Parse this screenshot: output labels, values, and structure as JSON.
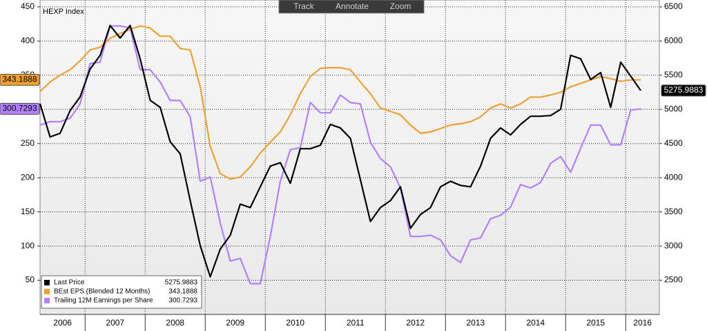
{
  "toolbar": [
    "Track",
    "Annotate",
    "Zoom"
  ],
  "chart_data": {
    "type": "line",
    "title": "HEXP Index",
    "categories": [
      null,
      "2006",
      null,
      null,
      null,
      null,
      null,
      "2007",
      null,
      null,
      null,
      null,
      null,
      "2008",
      null,
      null,
      null,
      null,
      null,
      "2009",
      null,
      null,
      null,
      null,
      null,
      "2010",
      null,
      null,
      null,
      null,
      null,
      "2011",
      null,
      null,
      null,
      null,
      null,
      "2012",
      null,
      null,
      null,
      null,
      null,
      "2013",
      null,
      null,
      null,
      null,
      null,
      "2014",
      null,
      null,
      null,
      null,
      null,
      "2015",
      null,
      null,
      null,
      null,
      "2016"
    ],
    "series": [
      {
        "name": "Last Price",
        "color": "#000000",
        "axis": "y2",
        "values": [
          5082,
          4596,
          4650,
          4980,
          5183,
          5590,
          5790,
          6227,
          6044,
          6227,
          5740,
          5133,
          5030,
          4525,
          4350,
          3665,
          3006,
          2550,
          2955,
          3158,
          3614,
          3563,
          3867,
          4170,
          4220,
          3918,
          4424,
          4424,
          4475,
          4780,
          4728,
          4576,
          3968,
          3360,
          3563,
          3665,
          3867,
          3260,
          3462,
          3563,
          3867,
          3948,
          3888,
          3867,
          4170,
          4576,
          4728,
          4627,
          4780,
          4900,
          4900,
          4910,
          5001,
          5791,
          5740,
          5437,
          5538,
          5030,
          5690,
          5487,
          5275.9883
        ]
      },
      {
        "name": "BEst EPS (Blended 12 Months)",
        "color": "#f0a030",
        "values": [
          326,
          340,
          350,
          358,
          371,
          387,
          391,
          404,
          411,
          417,
          422,
          419,
          407,
          407,
          389,
          387,
          333,
          246,
          206,
          198,
          201,
          216,
          236,
          252,
          267,
          292,
          323,
          348,
          360,
          361,
          361,
          358,
          340,
          323,
          302,
          297,
          292,
          277,
          265,
          267,
          272,
          277,
          279,
          282,
          289,
          302,
          308,
          302,
          308,
          318,
          318,
          321,
          325,
          333,
          338,
          343,
          348,
          345,
          341,
          343,
          343.1888
        ]
      },
      {
        "name": "Trailing 12M Earnings per Share",
        "color": "#b080ff",
        "values": [
          277,
          282,
          282,
          287,
          308,
          367,
          369,
          422,
          422,
          419,
          358,
          358,
          340,
          313,
          313,
          289,
          195,
          201,
          134,
          78,
          82,
          45,
          45,
          114,
          195,
          241,
          244,
          310,
          295,
          295,
          321,
          310,
          308,
          252,
          228,
          216,
          185,
          114,
          114,
          116,
          109,
          86,
          76,
          109,
          112,
          140,
          145,
          157,
          190,
          185,
          193,
          221,
          231,
          208,
          243,
          277,
          277,
          248,
          248,
          299,
          300.7293
        ]
      }
    ],
    "ylim": [
      0,
      460
    ],
    "yticks": [
      50,
      100,
      150,
      200,
      250,
      300,
      350,
      400,
      450
    ],
    "y2lim": [
      2000,
      6600
    ],
    "y2ticks": [
      2500,
      3000,
      3500,
      4000,
      4500,
      5000,
      5500,
      6000,
      6500
    ],
    "grid": true,
    "legend": "lower left"
  }
}
